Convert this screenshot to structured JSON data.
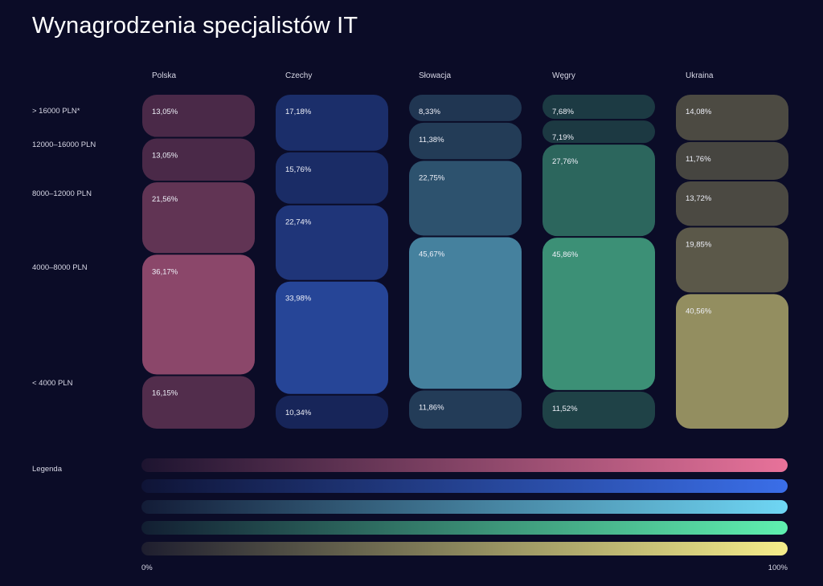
{
  "title": "Wynagrodzenia specjalistów IT",
  "chart_data": {
    "type": "bar",
    "title": "Wynagrodzenia specjalistów IT",
    "xlabel": "",
    "ylabel": "",
    "categories": [
      "Polska",
      "Czechy",
      "Słowacja",
      "Węgry",
      "Ukraina"
    ],
    "salary_bands": [
      "> 16000 PLN*",
      "12000–16000 PLN",
      "8000–12000 PLN",
      "4000–8000 PLN",
      "< 4000 PLN"
    ],
    "series": [
      {
        "values": [
          13.05,
          17.18,
          8.33,
          7.68,
          14.08
        ],
        "labels": [
          "13,05%",
          "17,18%",
          "8,33%",
          "7,68%",
          "14,08%"
        ]
      },
      {
        "values": [
          13.05,
          15.76,
          11.38,
          7.19,
          11.76
        ],
        "labels": [
          "13,05%",
          "15,76%",
          "11,38%",
          "7,19%",
          "11,76%"
        ]
      },
      {
        "values": [
          21.56,
          22.74,
          22.75,
          27.76,
          13.72
        ],
        "labels": [
          "21,56%",
          "22,74%",
          "22,75%",
          "27,76%",
          "13,72%"
        ]
      },
      {
        "values": [
          36.17,
          33.98,
          45.67,
          45.86,
          19.85
        ],
        "labels": [
          "36,17%",
          "33,98%",
          "45,67%",
          "45,86%",
          "19,85%"
        ]
      },
      {
        "values": [
          16.15,
          10.34,
          11.86,
          11.52,
          40.56
        ],
        "labels": [
          "16,15%",
          "10,34%",
          "11,86%",
          "11,52%",
          "40,56%"
        ]
      }
    ],
    "country_colors": [
      "#e8729a",
      "#3a6ee8",
      "#6fd6f4",
      "#5ff0b0",
      "#f5ec8a"
    ],
    "legend": {
      "label": "Legenda",
      "min_label": "0%",
      "max_label": "100%"
    }
  }
}
